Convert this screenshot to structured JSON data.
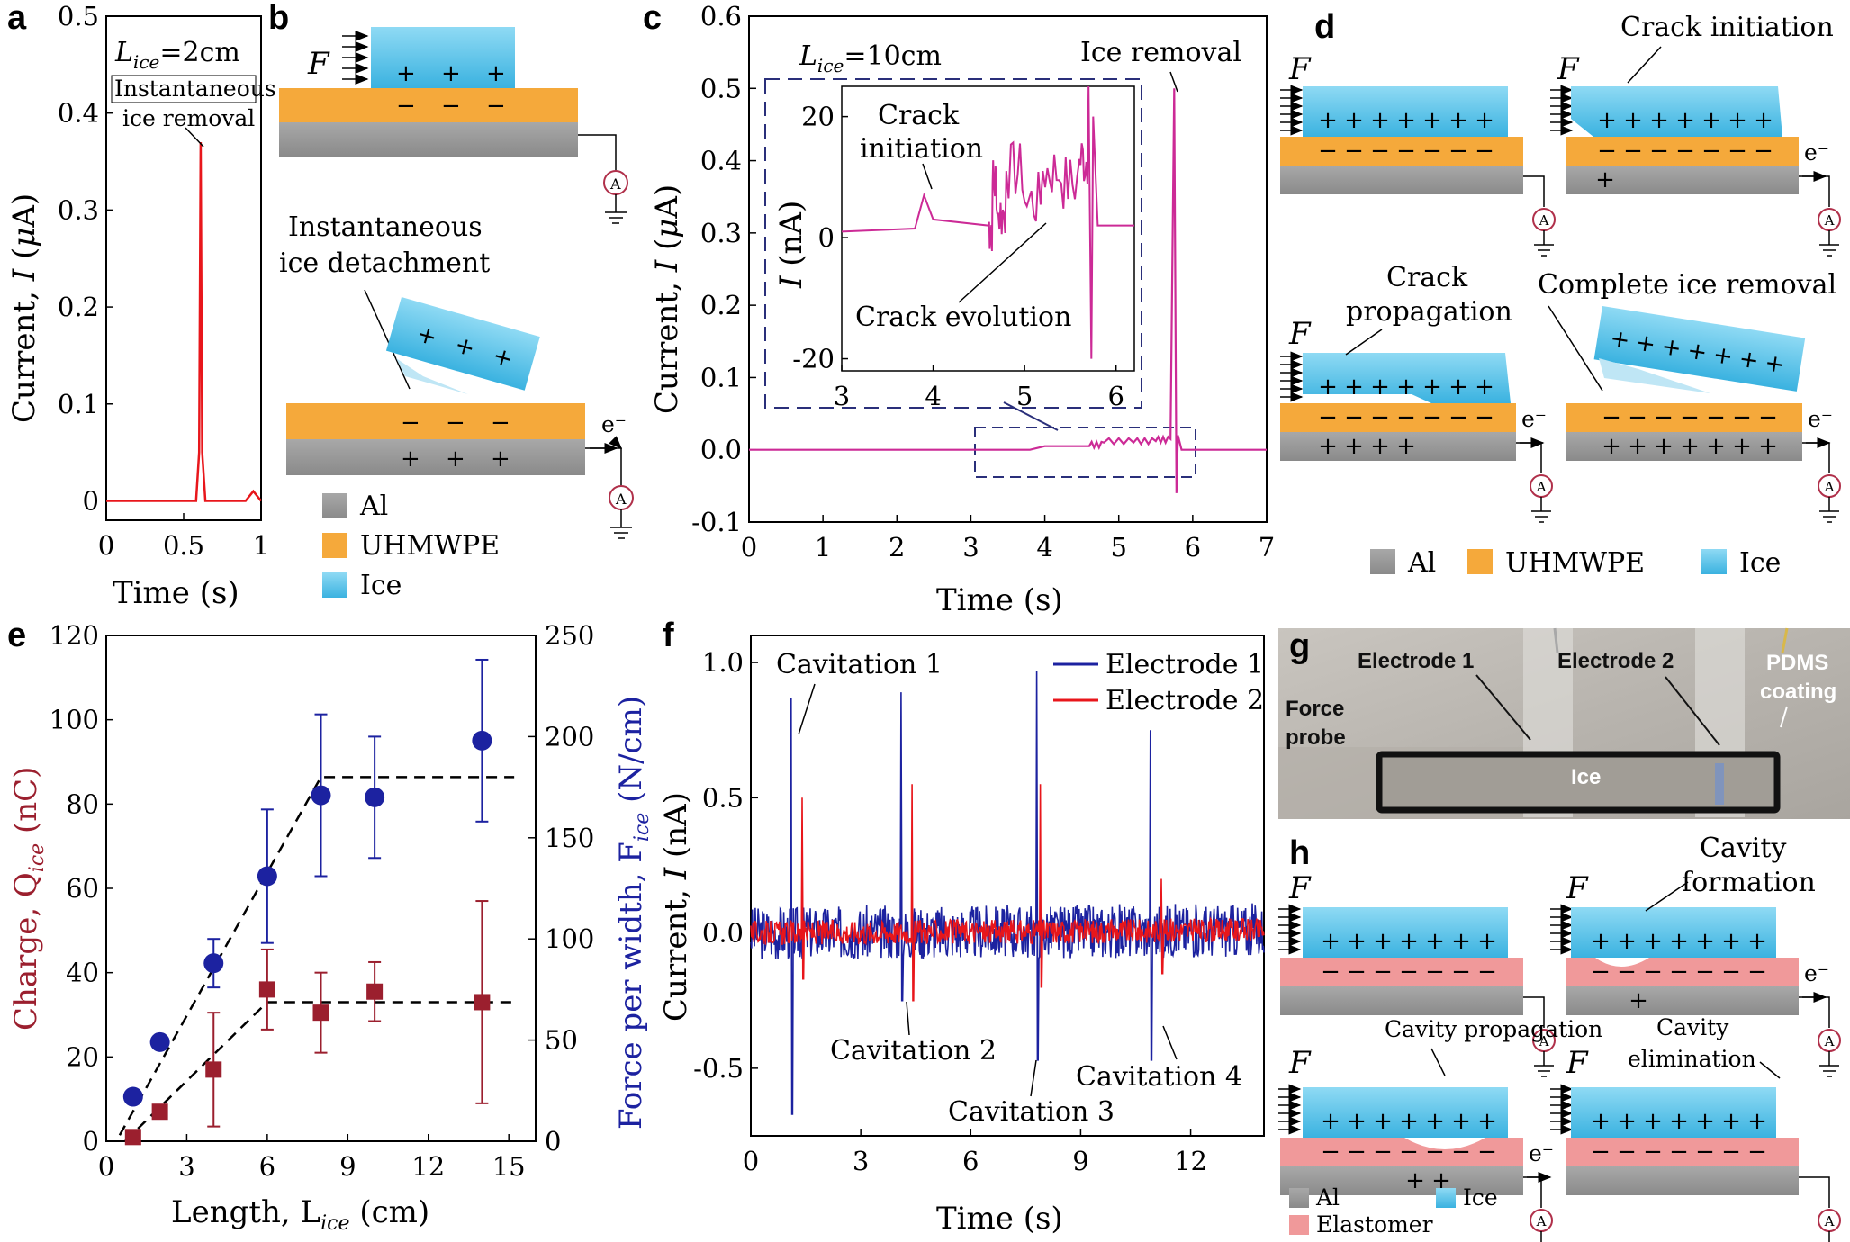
{
  "labels": {
    "a": "a",
    "b": "b",
    "c": "c",
    "d": "d",
    "e": "e",
    "f": "f",
    "g": "g",
    "h": "h"
  },
  "colors": {
    "red_trace": "#e8161b",
    "magenta_trace": "#cc2a96",
    "blue_series": "#1c22a0",
    "dark_red_series": "#9b1f2e",
    "ice": "#7fd0ee",
    "uhmwpe": "#f5a93b",
    "al": "#9a9a9a",
    "elastomer": "#f0999a",
    "dash": "#2a2f7a"
  },
  "a": {
    "lice": "L",
    "lice_sub": "ice",
    "lice_val": "=2cm",
    "annotation_l1": "Instantaneous",
    "annotation_l2": "ice removal",
    "xlabel": "Time (s)",
    "ylabel": "Current, I (μA)",
    "yticks": [
      "0",
      "0.1",
      "0.2",
      "0.3",
      "0.4",
      "0.5"
    ],
    "xticks": [
      "0",
      "0.5",
      "1"
    ]
  },
  "b": {
    "force": "F",
    "detach_l1": "Instantaneous",
    "detach_l2": "ice detachment",
    "electron": "e⁻",
    "legend": [
      {
        "label": "Al",
        "color": "al"
      },
      {
        "label": "UHMWPE",
        "color": "uhmwpe"
      },
      {
        "label": "Ice",
        "color": "ice"
      }
    ]
  },
  "c": {
    "lice": "L",
    "lice_sub": "ice",
    "lice_val": "=10cm",
    "ice_removal": "Ice removal",
    "xlabel": "Time (s)",
    "ylabel": "Current, I (μA)",
    "yticks": [
      "-0.1",
      "0.0",
      "0.1",
      "0.2",
      "0.3",
      "0.4",
      "0.5",
      "0.6"
    ],
    "xticks": [
      "0",
      "1",
      "2",
      "3",
      "4",
      "5",
      "6",
      "7"
    ],
    "inset": {
      "ylabel": "I (nA)",
      "yticks": [
        "-20",
        "0",
        "20"
      ],
      "xticks": [
        "3",
        "4",
        "5",
        "6"
      ],
      "crack_init_l1": "Crack",
      "crack_init_l2": "initiation",
      "crack_evol": "Crack evolution"
    }
  },
  "d": {
    "force": "F",
    "crack_initiation": "Crack initiation",
    "crack_prop_l1": "Crack",
    "crack_prop_l2": "propagation",
    "complete_removal": "Complete ice removal",
    "electron": "e⁻",
    "legend": [
      {
        "label": "Al",
        "color": "al"
      },
      {
        "label": "UHMWPE",
        "color": "uhmwpe"
      },
      {
        "label": "Ice",
        "color": "ice"
      }
    ]
  },
  "e": {
    "ylabel_left": "Charge, Q",
    "ylabel_left_sub": "ice",
    "ylabel_left_unit": " (nC)",
    "ylabel_right": "Force per width, F",
    "ylabel_right_sub": "ice",
    "ylabel_right_unit": " (N/cm)",
    "xlabel": "Length, L",
    "xlabel_sub": "ice",
    "xlabel_unit": " (cm)",
    "xticks": [
      "0",
      "3",
      "6",
      "9",
      "12",
      "15"
    ],
    "yticks_left": [
      "0",
      "20",
      "40",
      "60",
      "80",
      "100",
      "120"
    ],
    "yticks_right": [
      "0",
      "50",
      "100",
      "150",
      "200",
      "250"
    ]
  },
  "f": {
    "xlabel": "Time (s)",
    "ylabel": "Current, I (nA)",
    "yticks": [
      "-0.5",
      "0.0",
      "0.5",
      "1.0"
    ],
    "xticks": [
      "0",
      "3",
      "6",
      "9",
      "12"
    ],
    "legend": [
      "Electrode 1",
      "Electrode 2"
    ],
    "cav1": "Cavitation 1",
    "cav2": "Cavitation 2",
    "cav3": "Cavitation 3",
    "cav4": "Cavitation 4"
  },
  "g": {
    "electrode1": "Electrode 1",
    "electrode2": "Electrode 2",
    "pdms_l1": "PDMS",
    "pdms_l2": "coating",
    "force_l1": "Force",
    "force_l2": "probe",
    "ice": "Ice"
  },
  "h": {
    "force": "F",
    "cavity_form_l1": "Cavity",
    "cavity_form_l2": "formation",
    "cavity_prop": "Cavity propagation",
    "cavity_elim_l1": "Cavity",
    "cavity_elim_l2": "elimination",
    "electron": "e⁻",
    "legend": [
      {
        "label": "Al",
        "color": "al"
      },
      {
        "label": "Ice",
        "color": "ice"
      },
      {
        "label": "Elastomer",
        "color": "elastomer"
      }
    ]
  },
  "chart_data": [
    {
      "panel": "a",
      "type": "line",
      "xlim": [
        0,
        1
      ],
      "ylim": [
        -0.02,
        0.5
      ],
      "xlabel": "Time (s)",
      "ylabel": "Current, I (μA)",
      "series": [
        {
          "x": [
            0,
            0.3,
            0.58,
            0.6,
            0.61,
            0.62,
            0.64,
            0.9,
            0.95,
            1.0
          ],
          "y": [
            0,
            0,
            0,
            0.05,
            0.37,
            0.05,
            0,
            0,
            0.01,
            0
          ]
        }
      ]
    },
    {
      "panel": "c",
      "type": "line",
      "xlim": [
        0,
        7
      ],
      "ylim": [
        -0.1,
        0.6
      ],
      "xlabel": "Time (s)",
      "ylabel": "Current, I (μA)",
      "series": [
        {
          "x": [
            0,
            3.8,
            4.0,
            4.6,
            4.8,
            5.2,
            5.5,
            5.7,
            5.75,
            5.78,
            5.8,
            5.85,
            7
          ],
          "y": [
            0,
            0,
            0.005,
            0.005,
            0.01,
            0.01,
            0.012,
            0.015,
            0.5,
            -0.06,
            0.02,
            0,
            0
          ]
        }
      ]
    },
    {
      "panel": "c-inset",
      "type": "line",
      "xlim": [
        3,
        6.2
      ],
      "ylim": [
        -22,
        25
      ],
      "ylabel": "I (nA)",
      "series": [
        {
          "x": [
            3,
            3.8,
            3.9,
            4.0,
            4.6,
            4.65,
            4.7,
            4.8,
            5.0,
            5.2,
            5.4,
            5.6,
            5.7,
            5.73,
            5.75,
            5.8,
            6.2
          ],
          "y": [
            1,
            1.5,
            7,
            3,
            2,
            9,
            4,
            11,
            6,
            11,
            9,
            13,
            25,
            -20,
            20,
            2,
            2
          ]
        }
      ]
    },
    {
      "panel": "e",
      "type": "scatter",
      "xlim": [
        0,
        16
      ],
      "xlabel": "Length, Lice (cm)",
      "series": [
        {
          "name": "Charge",
          "axis": "left",
          "ylim": [
            0,
            120
          ],
          "x": [
            1,
            2,
            4,
            6,
            8,
            10,
            14
          ],
          "y": [
            1,
            7,
            17,
            36,
            30.5,
            35.5,
            33
          ],
          "err": [
            0,
            0,
            13.5,
            9.5,
            9.5,
            7,
            24
          ]
        },
        {
          "name": "Force per width",
          "axis": "right",
          "ylim": [
            0,
            250
          ],
          "x": [
            1,
            2,
            4,
            6,
            8,
            10,
            14
          ],
          "y": [
            22,
            49,
            88,
            131,
            171,
            170,
            198
          ],
          "err": [
            0,
            0,
            12,
            33,
            40,
            30,
            40
          ]
        }
      ]
    },
    {
      "panel": "f",
      "type": "line",
      "xlim": [
        0,
        14
      ],
      "ylim": [
        -0.75,
        1.1
      ],
      "xlabel": "Time (s)",
      "ylabel": "Current, I (nA)",
      "series": [
        {
          "name": "Electrode 1",
          "spikes_x": [
            1.1,
            4.1,
            7.8,
            10.9
          ],
          "spikes_up": [
            0.87,
            0.89,
            0.97,
            0.75
          ],
          "spikes_down": [
            -0.67,
            -0.25,
            -0.47,
            -0.47
          ]
        },
        {
          "name": "Electrode 2",
          "spikes_x": [
            1.4,
            4.4,
            7.9,
            11.2
          ],
          "spikes_up": [
            0.5,
            0.55,
            0.55,
            0.2
          ],
          "spikes_down": [
            -0.17,
            -0.25,
            -0.2,
            -0.15
          ]
        }
      ]
    }
  ]
}
